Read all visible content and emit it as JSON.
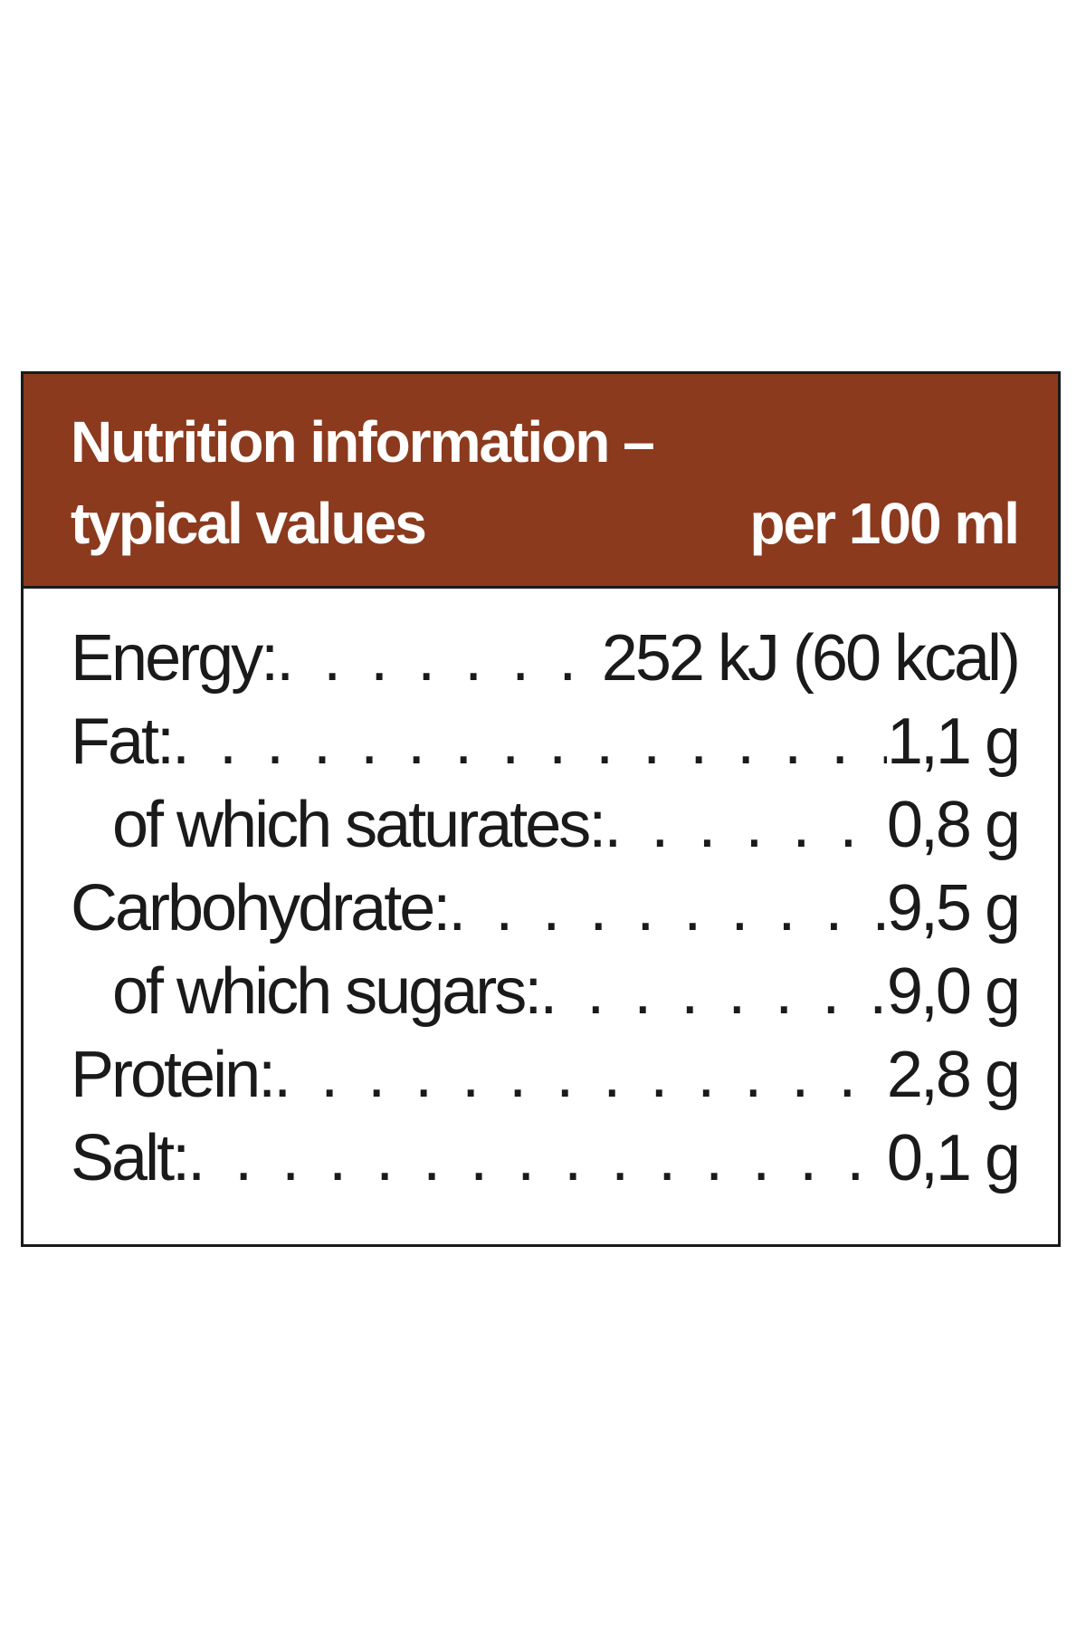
{
  "header": {
    "title_line1": "Nutrition information –",
    "title_line2": "typical values",
    "unit": "per 100 ml",
    "background_color": "#8b3a1e"
  },
  "rows": [
    {
      "label": "Energy:",
      "value": "252 kJ (60 kcal)",
      "indent": false
    },
    {
      "label": "Fat:",
      "value": "1,1 g",
      "indent": false
    },
    {
      "label": "of which saturates:",
      "value": "0,8 g",
      "indent": true
    },
    {
      "label": "Carbohydrate:",
      "value": "9,5 g",
      "indent": false
    },
    {
      "label": "of which sugars:",
      "value": "9,0 g",
      "indent": true
    },
    {
      "label": "Protein:",
      "value": "2,8 g",
      "indent": false
    },
    {
      "label": "Salt:",
      "value": "0,1 g",
      "indent": false
    }
  ]
}
